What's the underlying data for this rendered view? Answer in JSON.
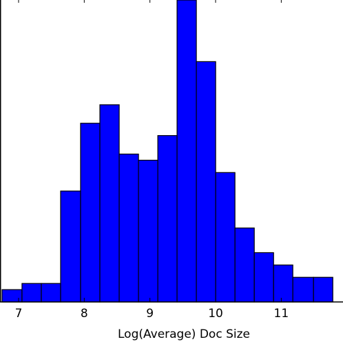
{
  "chart_data": {
    "type": "histogram",
    "x_label": "Log(Average) Doc Size",
    "bins": [
      6.748,
      7.052,
      7.346,
      7.64,
      7.944,
      8.238,
      8.532,
      8.826,
      9.12,
      9.413,
      9.707,
      10.001,
      10.295,
      10.589,
      10.883,
      11.176,
      11.491,
      11.785
    ],
    "values": [
      2,
      3,
      3,
      18,
      29,
      32,
      24,
      23,
      27,
      49,
      39,
      21,
      12,
      8,
      6,
      4,
      4
    ],
    "color": "#0000ff",
    "xlim": [
      6.717,
      11.94
    ],
    "xticks": [
      7,
      8,
      9,
      10,
      11
    ]
  }
}
